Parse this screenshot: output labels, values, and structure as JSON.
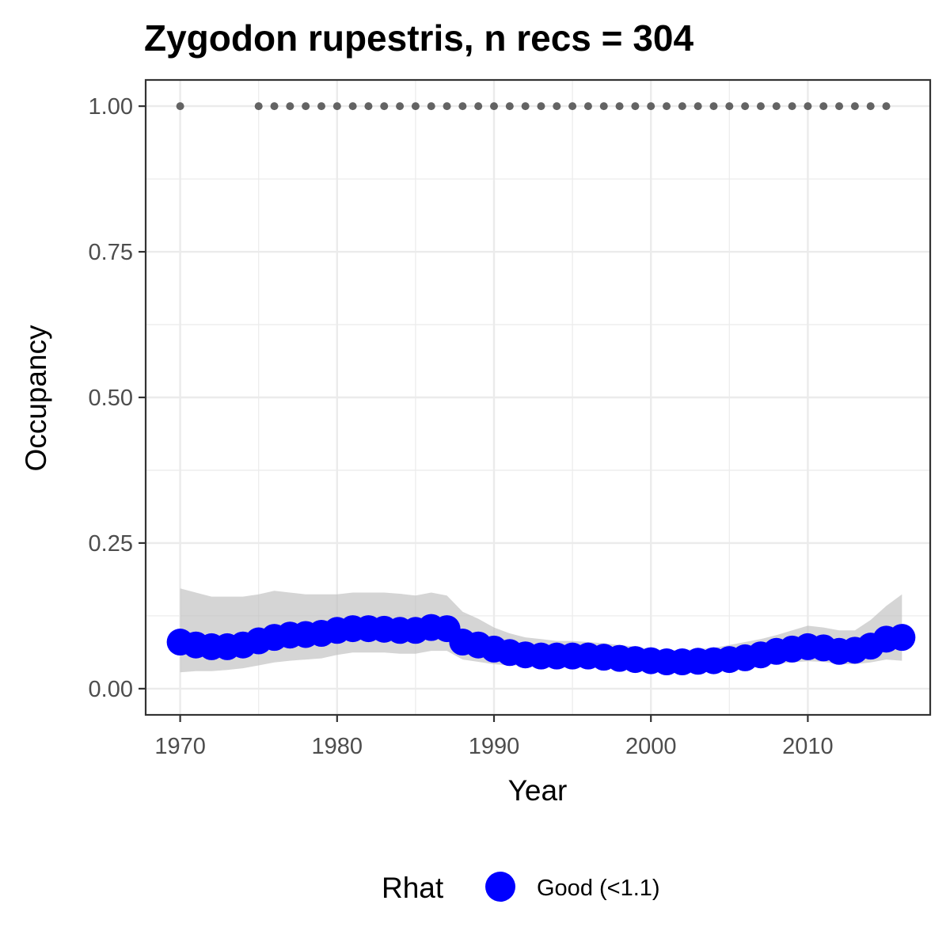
{
  "chart_data": {
    "type": "line",
    "title": "Zygodon rupestris, n recs = 304",
    "xlabel": "Year",
    "ylabel": "Occupancy",
    "xlim": [
      1967.8,
      2017.8
    ],
    "ylim": [
      -0.045,
      1.045
    ],
    "x_ticks": [
      1970,
      1980,
      1990,
      2000,
      2010
    ],
    "x_tick_labels": [
      "1970",
      "1980",
      "1990",
      "2000",
      "2010"
    ],
    "y_ticks": [
      0,
      0.25,
      0.5,
      0.75,
      1
    ],
    "y_tick_labels": [
      "0.00",
      "0.25",
      "0.50",
      "0.75",
      "1.00"
    ],
    "grid": true,
    "legend": {
      "title": "Rhat",
      "position": "bottom",
      "entries": [
        {
          "label": "Good (<1.1)",
          "color": "#0000ff"
        }
      ]
    },
    "colors": {
      "points": "#0000ff",
      "ribbon": "#bebebe",
      "record_dots": "#636363",
      "grid": "#ebebeb",
      "panel_border": "#333333"
    },
    "series": [
      {
        "name": "Occupancy",
        "x": [
          1970,
          1971,
          1972,
          1973,
          1974,
          1975,
          1976,
          1977,
          1978,
          1979,
          1980,
          1981,
          1982,
          1983,
          1984,
          1985,
          1986,
          1987,
          1988,
          1989,
          1990,
          1991,
          1992,
          1993,
          1994,
          1995,
          1996,
          1997,
          1998,
          1999,
          2000,
          2001,
          2002,
          2003,
          2004,
          2005,
          2006,
          2007,
          2008,
          2009,
          2010,
          2011,
          2012,
          2013,
          2014,
          2015,
          2016
        ],
        "y": [
          0.08,
          0.075,
          0.072,
          0.072,
          0.075,
          0.082,
          0.088,
          0.092,
          0.093,
          0.095,
          0.1,
          0.103,
          0.103,
          0.102,
          0.1,
          0.1,
          0.105,
          0.103,
          0.08,
          0.075,
          0.068,
          0.062,
          0.058,
          0.056,
          0.056,
          0.056,
          0.056,
          0.054,
          0.052,
          0.05,
          0.048,
          0.046,
          0.046,
          0.047,
          0.048,
          0.05,
          0.053,
          0.058,
          0.064,
          0.068,
          0.072,
          0.07,
          0.064,
          0.066,
          0.073,
          0.085,
          0.088
        ],
        "lower": [
          0.028,
          0.03,
          0.03,
          0.032,
          0.035,
          0.04,
          0.045,
          0.048,
          0.05,
          0.052,
          0.058,
          0.062,
          0.062,
          0.062,
          0.06,
          0.06,
          0.065,
          0.065,
          0.05,
          0.046,
          0.042,
          0.04,
          0.04,
          0.04,
          0.04,
          0.04,
          0.04,
          0.038,
          0.036,
          0.034,
          0.033,
          0.032,
          0.032,
          0.032,
          0.033,
          0.034,
          0.036,
          0.04,
          0.043,
          0.045,
          0.047,
          0.046,
          0.042,
          0.042,
          0.045,
          0.05,
          0.048
        ],
        "upper": [
          0.172,
          0.165,
          0.158,
          0.158,
          0.158,
          0.162,
          0.168,
          0.165,
          0.162,
          0.162,
          0.162,
          0.165,
          0.165,
          0.165,
          0.163,
          0.16,
          0.165,
          0.16,
          0.132,
          0.12,
          0.105,
          0.095,
          0.088,
          0.085,
          0.082,
          0.082,
          0.08,
          0.078,
          0.075,
          0.072,
          0.068,
          0.066,
          0.066,
          0.068,
          0.07,
          0.075,
          0.08,
          0.085,
          0.092,
          0.1,
          0.108,
          0.105,
          0.1,
          0.1,
          0.118,
          0.142,
          0.162
        ]
      },
      {
        "name": "Records",
        "y_value": 1,
        "x": [
          1970,
          1975,
          1976,
          1977,
          1978,
          1979,
          1980,
          1981,
          1982,
          1983,
          1984,
          1985,
          1986,
          1987,
          1988,
          1989,
          1990,
          1991,
          1992,
          1993,
          1994,
          1995,
          1996,
          1997,
          1998,
          1999,
          2000,
          2001,
          2002,
          2003,
          2004,
          2005,
          2006,
          2007,
          2008,
          2009,
          2010,
          2011,
          2012,
          2013,
          2014,
          2015
        ]
      }
    ]
  }
}
